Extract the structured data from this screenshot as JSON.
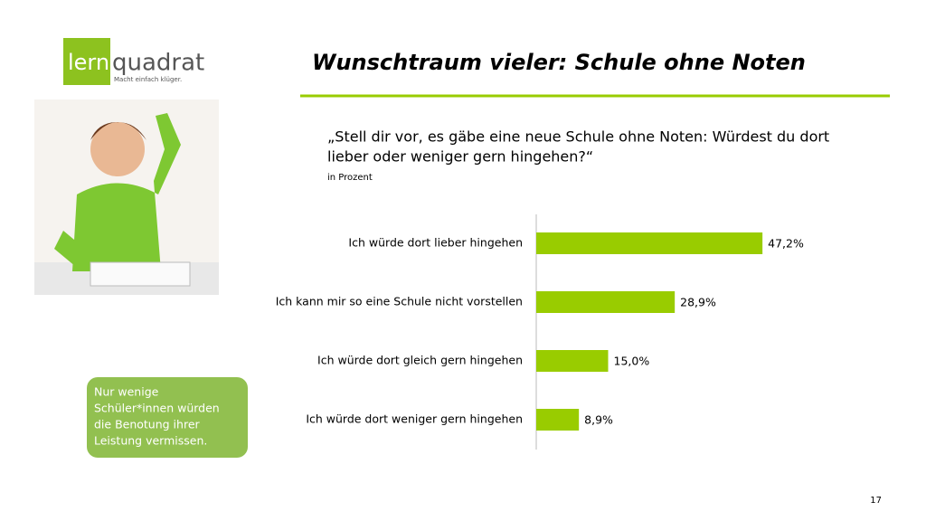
{
  "logo": {
    "part1": "lern",
    "part2": "quadrat",
    "tagline": "Macht einfach klüger."
  },
  "title": "Wunschtraum vieler: Schule ohne Noten",
  "note": [
    "Nur wenige",
    "Schüler*innen würden",
    "die Benotung ihrer",
    "Leistung vermissen."
  ],
  "page_number": 17,
  "chart_data": {
    "type": "bar",
    "orientation": "horizontal",
    "title": [
      "„Stell dir vor, es gäbe eine neue Schule ohne Noten: Würdest du dort",
      "lieber oder weniger gern hingehen?“"
    ],
    "subtitle": "in Prozent",
    "categories": [
      "Ich würde dort lieber hingehen",
      "Ich kann mir so eine Schule nicht vorstellen",
      "Ich würde dort gleich gern hingehen",
      "Ich würde dort weniger gern hingehen"
    ],
    "values": [
      47.2,
      28.9,
      15.0,
      8.9
    ],
    "value_labels": [
      "47,2%",
      "28,9%",
      "15,0%",
      "8,9%"
    ],
    "color": "#99cc00"
  }
}
